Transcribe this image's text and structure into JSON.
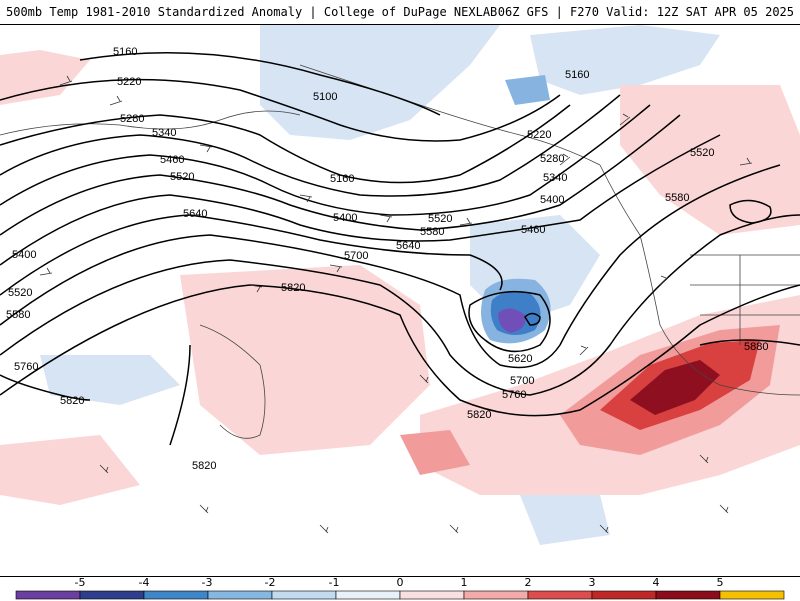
{
  "header": {
    "left_title": "500mb Temp 1981-2010 Standardized Anomaly | College of DuPage NEXLAB",
    "right_title": "06Z GFS | F270 Valid: 12Z SAT APR 05 2025"
  },
  "contours": [
    {
      "label": "5160"
    },
    {
      "label": "5220"
    },
    {
      "label": "5100"
    },
    {
      "label": "5160"
    },
    {
      "label": "5280"
    },
    {
      "label": "5340"
    },
    {
      "label": "5460"
    },
    {
      "label": "5520"
    },
    {
      "label": "5160"
    },
    {
      "label": "5220"
    },
    {
      "label": "5280"
    },
    {
      "label": "5340"
    },
    {
      "label": "5400"
    },
    {
      "label": "5520"
    },
    {
      "label": "5580"
    },
    {
      "label": "5640"
    },
    {
      "label": "5400"
    },
    {
      "label": "5520"
    },
    {
      "label": "5580"
    },
    {
      "label": "5640"
    },
    {
      "label": "5460"
    },
    {
      "label": "5700"
    },
    {
      "label": "5400"
    },
    {
      "label": "5820"
    },
    {
      "label": "5520"
    },
    {
      "label": "5580"
    },
    {
      "label": "5620"
    },
    {
      "label": "5700"
    },
    {
      "label": "5760"
    },
    {
      "label": "5880"
    },
    {
      "label": "5760"
    },
    {
      "label": "5820"
    },
    {
      "label": "5820"
    },
    {
      "label": "5820"
    }
  ],
  "colorbar": {
    "ticks": [
      "-5",
      "-4",
      "-3",
      "-2",
      "-1",
      "0",
      "1",
      "2",
      "3",
      "4",
      "5"
    ],
    "colors": [
      "#6a3fa0",
      "#2d3f8c",
      "#3e86c8",
      "#86b7e1",
      "#c3dbf0",
      "#e8f1f9",
      "#f8e0e0",
      "#f2aaaa",
      "#dc4e4e",
      "#c02828",
      "#8b0d1a",
      "#f5c000"
    ]
  },
  "colors": {
    "positive_light": "#fbd6d6",
    "positive_mid": "#f19b9b",
    "positive_strong": "#d94040",
    "positive_dark": "#8e1020",
    "negative_light": "#d6e4f4",
    "negative_mid": "#86b3e0",
    "negative_strong": "#3f7fc8",
    "negative_purple": "#7050b8"
  }
}
